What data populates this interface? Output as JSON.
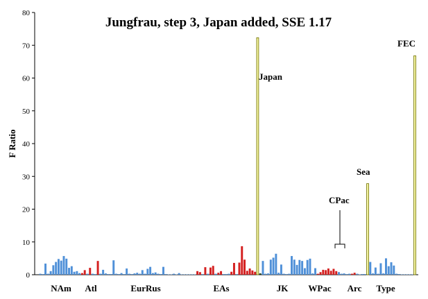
{
  "chart_data": {
    "type": "bar",
    "title": "Jungfrau, step 3, Japan added, SSE 1.17",
    "ylabel": "F Ratio",
    "xlabel": "",
    "ylim": [
      0,
      80
    ],
    "yticks": [
      0,
      10,
      20,
      30,
      40,
      50,
      60,
      70,
      80
    ],
    "grid": false,
    "legend": "none",
    "colors": {
      "blue": "#4f90d8",
      "red": "#d42020",
      "yellow": "#f3f3a0",
      "yellowEdge": "#6f6f00",
      "darkgreen": "#1a3a1a"
    },
    "group_labels": [
      "NAm",
      "Atl",
      "EurRus",
      "EAs",
      "JK",
      "WPac",
      "Arc",
      "Type"
    ],
    "annotations": [
      "Japan",
      "Sea",
      "CPac",
      "FEC"
    ],
    "bars": [
      {
        "color": "blue",
        "value": 0.3
      },
      {
        "color": "blue",
        "value": 0.2
      },
      {
        "color": "blue",
        "value": 3.4
      },
      {
        "color": "blue",
        "value": 0.3
      },
      {
        "color": "blue",
        "value": 1.1
      },
      {
        "color": "blue",
        "value": 2.9
      },
      {
        "color": "blue",
        "value": 3.9
      },
      {
        "color": "blue",
        "value": 4.8
      },
      {
        "color": "blue",
        "value": 4.3
      },
      {
        "color": "blue",
        "value": 5.7
      },
      {
        "color": "blue",
        "value": 4.9
      },
      {
        "color": "blue",
        "value": 2.1
      },
      {
        "color": "blue",
        "value": 2.6
      },
      {
        "color": "blue",
        "value": 0.9
      },
      {
        "color": "blue",
        "value": 1.1
      },
      {
        "color": "blue",
        "value": 0.5
      },
      {
        "color": "red",
        "value": 0.5
      },
      {
        "color": "red",
        "value": 1.4
      },
      {
        "color": "blue",
        "value": 0.3
      },
      {
        "color": "red",
        "value": 2.1
      },
      {
        "color": "blue",
        "value": 0.3
      },
      {
        "color": "blue",
        "value": 0.2
      },
      {
        "color": "red",
        "value": 4.2
      },
      {
        "color": "blue",
        "value": 0.3
      },
      {
        "color": "blue",
        "value": 1.5
      },
      {
        "color": "blue",
        "value": 0.4
      },
      {
        "color": "blue",
        "value": 0.2
      },
      {
        "color": "blue",
        "value": 0.2
      },
      {
        "color": "blue",
        "value": 4.4
      },
      {
        "color": "blue",
        "value": 0.3
      },
      {
        "color": "blue",
        "value": 0.2
      },
      {
        "color": "blue",
        "value": 0.5
      },
      {
        "color": "blue",
        "value": 0.2
      },
      {
        "color": "blue",
        "value": 1.9
      },
      {
        "color": "blue",
        "value": 0.3
      },
      {
        "color": "blue",
        "value": 0.2
      },
      {
        "color": "blue",
        "value": 0.4
      },
      {
        "color": "blue",
        "value": 0.6
      },
      {
        "color": "blue",
        "value": 0.3
      },
      {
        "color": "blue",
        "value": 1.4
      },
      {
        "color": "blue",
        "value": 0.3
      },
      {
        "color": "blue",
        "value": 1.8
      },
      {
        "color": "blue",
        "value": 2.4
      },
      {
        "color": "blue",
        "value": 0.5
      },
      {
        "color": "blue",
        "value": 0.7
      },
      {
        "color": "blue",
        "value": 0.3
      },
      {
        "color": "blue",
        "value": 0.2
      },
      {
        "color": "blue",
        "value": 2.4
      },
      {
        "color": "blue",
        "value": 0.2
      },
      {
        "color": "blue",
        "value": 0.1
      },
      {
        "color": "blue",
        "value": 0.1
      },
      {
        "color": "blue",
        "value": 0.3
      },
      {
        "color": "blue",
        "value": 0.1
      },
      {
        "color": "blue",
        "value": 0.5
      },
      {
        "color": "blue",
        "value": 0.1
      },
      {
        "color": "blue",
        "value": 0.1
      },
      {
        "color": "blue",
        "value": 0.1
      },
      {
        "color": "blue",
        "value": 0.1
      },
      {
        "color": "blue",
        "value": 0.1
      },
      {
        "color": "blue",
        "value": 0.1
      },
      {
        "color": "red",
        "value": 1.1
      },
      {
        "color": "red",
        "value": 0.8
      },
      {
        "color": "blue",
        "value": 0.2
      },
      {
        "color": "red",
        "value": 2.3
      },
      {
        "color": "blue",
        "value": 0.3
      },
      {
        "color": "red",
        "value": 2.2
      },
      {
        "color": "red",
        "value": 2.7
      },
      {
        "color": "blue",
        "value": 0.3
      },
      {
        "color": "red",
        "value": 0.6
      },
      {
        "color": "red",
        "value": 1.1
      },
      {
        "color": "blue",
        "value": 0.2
      },
      {
        "color": "blue",
        "value": 0.2
      },
      {
        "color": "blue",
        "value": 0.3
      },
      {
        "color": "red",
        "value": 0.9
      },
      {
        "color": "red",
        "value": 3.6
      },
      {
        "color": "blue",
        "value": 0.2
      },
      {
        "color": "red",
        "value": 3.7
      },
      {
        "color": "red",
        "value": 8.7
      },
      {
        "color": "red",
        "value": 4.6
      },
      {
        "color": "red",
        "value": 1.2
      },
      {
        "color": "red",
        "value": 1.9
      },
      {
        "color": "red",
        "value": 1.3
      },
      {
        "color": "red",
        "value": 0.9
      },
      {
        "color": "yellow",
        "value": 72.3
      },
      {
        "color": "darkgreen",
        "value": 0.4
      },
      {
        "color": "blue",
        "value": 4.2
      },
      {
        "color": "blue",
        "value": 0.3
      },
      {
        "color": "blue",
        "value": 0.4
      },
      {
        "color": "blue",
        "value": 4.6
      },
      {
        "color": "blue",
        "value": 5.2
      },
      {
        "color": "blue",
        "value": 6.4
      },
      {
        "color": "blue",
        "value": 0.6
      },
      {
        "color": "blue",
        "value": 3.1
      },
      {
        "color": "blue",
        "value": 0.3
      },
      {
        "color": "blue",
        "value": 0.2
      },
      {
        "color": "blue",
        "value": 0.3
      },
      {
        "color": "blue",
        "value": 5.7
      },
      {
        "color": "blue",
        "value": 4.6
      },
      {
        "color": "blue",
        "value": 3.0
      },
      {
        "color": "blue",
        "value": 4.5
      },
      {
        "color": "blue",
        "value": 4.2
      },
      {
        "color": "blue",
        "value": 2.0
      },
      {
        "color": "blue",
        "value": 4.5
      },
      {
        "color": "blue",
        "value": 4.9
      },
      {
        "color": "blue",
        "value": 0.4
      },
      {
        "color": "blue",
        "value": 2.0
      },
      {
        "color": "red",
        "value": 0.3
      },
      {
        "color": "red",
        "value": 0.8
      },
      {
        "color": "red",
        "value": 1.5
      },
      {
        "color": "red",
        "value": 1.4
      },
      {
        "color": "red",
        "value": 1.9
      },
      {
        "color": "red",
        "value": 1.2
      },
      {
        "color": "red",
        "value": 1.8
      },
      {
        "color": "red",
        "value": 1.1
      },
      {
        "color": "blue",
        "value": 0.8
      },
      {
        "color": "blue",
        "value": 0.3
      },
      {
        "color": "blue",
        "value": 0.4
      },
      {
        "color": "blue",
        "value": 0.2
      },
      {
        "color": "blue",
        "value": 0.3
      },
      {
        "color": "red",
        "value": 0.3
      },
      {
        "color": "red",
        "value": 0.6
      },
      {
        "color": "blue",
        "value": 0.3
      },
      {
        "color": "blue",
        "value": 0.1
      },
      {
        "color": "blue",
        "value": 0.2
      },
      {
        "color": "blue",
        "value": 0.2
      },
      {
        "color": "yellow",
        "value": 27.8
      },
      {
        "color": "blue",
        "value": 3.9
      },
      {
        "color": "blue",
        "value": 0.4
      },
      {
        "color": "blue",
        "value": 2.2
      },
      {
        "color": "blue",
        "value": 0.3
      },
      {
        "color": "blue",
        "value": 3.5
      },
      {
        "color": "blue",
        "value": 0.4
      },
      {
        "color": "blue",
        "value": 5.0
      },
      {
        "color": "blue",
        "value": 2.6
      },
      {
        "color": "blue",
        "value": 3.8
      },
      {
        "color": "blue",
        "value": 2.8
      },
      {
        "color": "blue",
        "value": 0.3
      },
      {
        "color": "blue",
        "value": 0.2
      },
      {
        "color": "blue",
        "value": 0.1
      },
      {
        "color": "blue",
        "value": 0.1
      },
      {
        "color": "blue",
        "value": 0.1
      },
      {
        "color": "blue",
        "value": 0.1
      },
      {
        "color": "blue",
        "value": 0.1
      },
      {
        "color": "yellow",
        "value": 66.8
      }
    ]
  }
}
